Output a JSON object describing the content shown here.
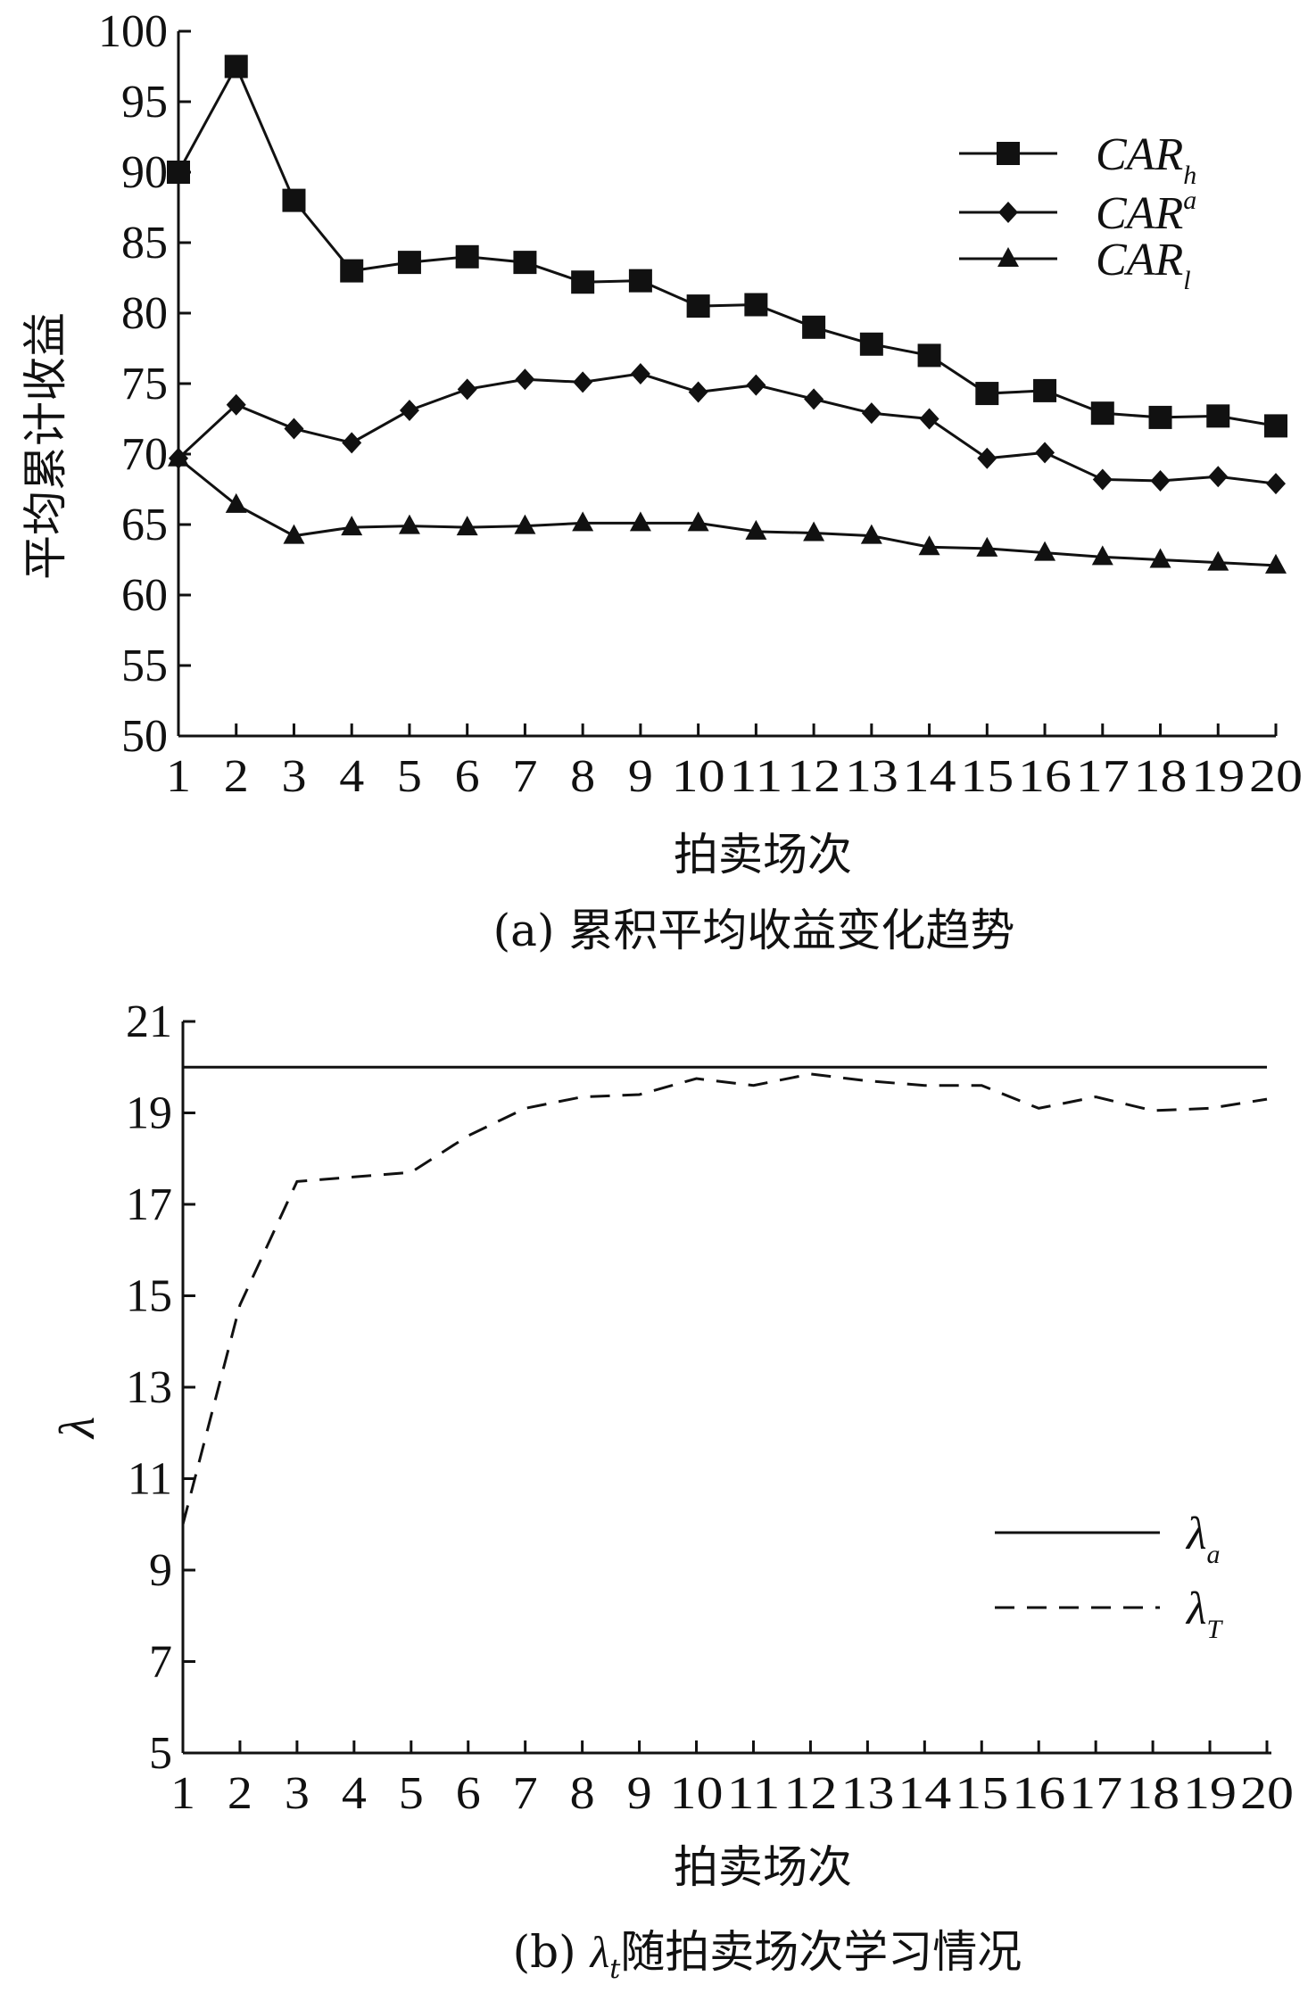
{
  "chart_data": [
    {
      "type": "line",
      "ylabel": "平均累计收益",
      "xlabel": "拍卖场次",
      "caption": "(a) 累积平均收益变化趋势",
      "x": [
        1,
        2,
        3,
        4,
        5,
        6,
        7,
        8,
        9,
        10,
        11,
        12,
        13,
        14,
        15,
        16,
        17,
        18,
        19,
        20
      ],
      "xticks": [
        "1",
        "2",
        "3",
        "4",
        "5",
        "6",
        "7",
        "8",
        "9",
        "10",
        "11",
        "12",
        "13",
        "14",
        "15",
        "16",
        "17",
        "18",
        "19",
        "20"
      ],
      "ylim": [
        50,
        100
      ],
      "yticks": [
        "50",
        "55",
        "60",
        "65",
        "70",
        "75",
        "80",
        "85",
        "90",
        "95",
        "100"
      ],
      "grid": false,
      "legend_position": "top-right",
      "series": [
        {
          "name": "CAR",
          "sub": "h",
          "sup": "",
          "marker": "square",
          "values": [
            90,
            97.5,
            88,
            83,
            83.6,
            84,
            83.6,
            82.2,
            82.3,
            80.5,
            80.6,
            79,
            77.8,
            77,
            74.3,
            74.5,
            72.9,
            72.6,
            72.7,
            72
          ]
        },
        {
          "name": "CAR",
          "sub": "",
          "sup": "a",
          "marker": "diamond",
          "values": [
            69.7,
            73.5,
            71.8,
            70.8,
            73.1,
            74.6,
            75.3,
            75.1,
            75.7,
            74.4,
            74.9,
            73.9,
            72.9,
            72.5,
            69.7,
            70.1,
            68.2,
            68.1,
            68.4,
            67.9
          ]
        },
        {
          "name": "CAR",
          "sub": "l",
          "sup": "",
          "marker": "triangle",
          "values": [
            69.7,
            66.4,
            64.2,
            64.8,
            64.9,
            64.8,
            64.9,
            65.1,
            65.1,
            65.1,
            64.5,
            64.4,
            64.2,
            63.4,
            63.3,
            63,
            62.7,
            62.5,
            62.3,
            62.1
          ]
        }
      ]
    },
    {
      "type": "line",
      "ylabel": "λ",
      "xlabel": "拍卖场次",
      "caption_parts": [
        "(b) ",
        "λ",
        "t",
        "随拍卖场次学习情况"
      ],
      "x": [
        1,
        2,
        3,
        4,
        5,
        6,
        7,
        8,
        9,
        10,
        11,
        12,
        13,
        14,
        15,
        16,
        17,
        18,
        19,
        20
      ],
      "xticks": [
        "1",
        "2",
        "3",
        "4",
        "5",
        "6",
        "7",
        "8",
        "9",
        "10",
        "11",
        "12",
        "13",
        "14",
        "15",
        "16",
        "17",
        "18",
        "19",
        "20"
      ],
      "ylim": [
        5,
        21
      ],
      "yticks": [
        "5",
        "7",
        "9",
        "11",
        "13",
        "15",
        "17",
        "19",
        "21"
      ],
      "grid": false,
      "legend_position": "bottom-right",
      "series": [
        {
          "name": "λ",
          "sub": "a",
          "style": "solid",
          "values": [
            20,
            20,
            20,
            20,
            20,
            20,
            20,
            20,
            20,
            20,
            20,
            20,
            20,
            20,
            20,
            20,
            20,
            20,
            20,
            20
          ]
        },
        {
          "name": "λ",
          "sub": "T",
          "style": "dashed",
          "values": [
            10,
            14.8,
            17.5,
            17.6,
            17.7,
            18.5,
            19.1,
            19.35,
            19.4,
            19.75,
            19.6,
            19.85,
            19.7,
            19.6,
            19.6,
            19.1,
            19.35,
            19.05,
            19.1,
            19.3
          ]
        }
      ]
    }
  ]
}
